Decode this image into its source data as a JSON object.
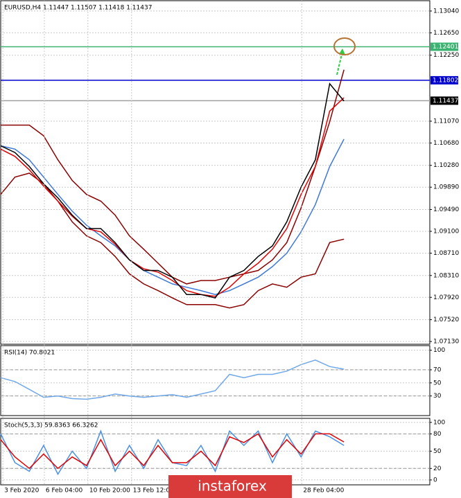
{
  "chart_data": [
    {
      "type": "line",
      "title": "EURUSD,H4  1.11447 1.11507 1.11418 1.11437",
      "x": [
        0,
        1,
        2,
        3,
        4,
        5,
        6,
        7,
        8,
        9,
        10,
        11,
        12,
        13,
        14,
        15,
        16,
        17,
        18,
        19,
        20,
        21,
        22,
        23,
        24
      ],
      "xlim": [
        0,
        30
      ],
      "ylim": [
        1.07081,
        1.13225
      ],
      "yticks": [
        {
          "value": 1.1304,
          "label": "1.13040"
        },
        {
          "value": 1.1265,
          "label": "1.12650"
        },
        {
          "value": 1.1225,
          "label": "1.12250"
        },
        {
          "value": 1.1107,
          "label": "1.11070"
        },
        {
          "value": 1.1068,
          "label": "1.10680"
        },
        {
          "value": 1.1028,
          "label": "1.10280"
        },
        {
          "value": 1.0989,
          "label": "1.09890"
        },
        {
          "value": 1.0949,
          "label": "1.09490"
        },
        {
          "value": 1.091,
          "label": "1.09100"
        },
        {
          "value": 1.0871,
          "label": "1.08710"
        },
        {
          "value": 1.0831,
          "label": "1.08310"
        },
        {
          "value": 1.0792,
          "label": "1.07920"
        },
        {
          "value": 1.0752,
          "label": "1.07520"
        },
        {
          "value": 1.0713,
          "label": "1.07130"
        }
      ],
      "grid": true,
      "series": [
        {
          "color": "#8b0000",
          "values": [
            1.11,
            1.11,
            1.11,
            1.1081,
            1.1038,
            1.1001,
            1.0976,
            1.0964,
            1.0939,
            1.0902,
            1.0878,
            1.0853,
            1.0828,
            1.0816,
            1.0822,
            1.0822,
            1.0828,
            1.0834,
            1.084,
            1.0859,
            1.089,
            1.0952,
            1.1026,
            1.1106,
            1.1199
          ]
        },
        {
          "color": "#8b0000",
          "values": [
            1.0976,
            1.1007,
            1.1014,
            1.0995,
            1.0964,
            1.0927,
            1.0902,
            1.089,
            1.0865,
            1.0834,
            1.0816,
            1.0804,
            1.0791,
            1.0779,
            1.0779,
            1.0779,
            1.0773,
            1.0779,
            1.0804,
            1.0816,
            1.081,
            1.0828,
            1.0834,
            1.089,
            1.0896
          ]
        },
        {
          "color": "#3c78d8",
          "values": [
            1.1063,
            1.1057,
            1.1038,
            1.1007,
            1.0976,
            1.0946,
            1.0921,
            1.0902,
            1.0884,
            1.0859,
            1.084,
            1.0828,
            1.0816,
            1.081,
            1.0804,
            1.0797,
            1.0804,
            1.0816,
            1.0828,
            1.0847,
            1.0871,
            1.0909,
            1.0958,
            1.1026,
            1.1075
          ]
        },
        {
          "color": "#e00000",
          "values": [
            1.1057,
            1.1044,
            1.102,
            1.0991,
            1.0964,
            1.0937,
            1.0915,
            1.0909,
            1.0887,
            1.0859,
            1.0843,
            1.0837,
            1.0822,
            1.0804,
            1.0797,
            1.0794,
            1.081,
            1.0834,
            1.0853,
            1.0878,
            1.0915,
            1.0976,
            1.1026,
            1.1125,
            1.1149
          ]
        },
        {
          "color": "#000000",
          "values": [
            1.1063,
            1.1051,
            1.1026,
            1.0995,
            1.097,
            1.0939,
            1.0915,
            1.0915,
            1.089,
            1.0859,
            1.084,
            1.084,
            1.0828,
            1.0797,
            1.0797,
            1.0791,
            1.0828,
            1.084,
            1.0865,
            1.0884,
            1.0927,
            1.0989,
            1.1038,
            1.1174,
            1.1143
          ]
        }
      ],
      "hlines": [
        {
          "value": 1.12401,
          "color": "#3cb371"
        },
        {
          "value": 1.11802,
          "color": "#0000cd"
        },
        {
          "value": 1.11437,
          "color": "#a0a0a0",
          "tag": "#000000"
        }
      ]
    },
    {
      "type": "line",
      "title": "RSI(14) 70.8021",
      "x": [
        0,
        1,
        2,
        3,
        4,
        5,
        6,
        7,
        8,
        9,
        10,
        11,
        12,
        13,
        14,
        15,
        16,
        17,
        18,
        19,
        20,
        21,
        22,
        23,
        24
      ],
      "xlim": [
        0,
        30
      ],
      "ylim": [
        0,
        107
      ],
      "yticks": [
        100,
        70,
        50,
        30
      ],
      "levels": [
        70,
        30
      ],
      "grid": true,
      "series": [
        {
          "color": "#6fa8e8",
          "values": [
            58,
            52,
            40,
            28,
            30,
            26,
            25,
            28,
            33,
            30,
            28,
            30,
            32,
            28,
            33,
            38,
            63,
            58,
            63,
            63,
            68,
            78,
            85,
            75,
            71
          ]
        }
      ]
    },
    {
      "type": "line",
      "title": "Stoch(5,3,3) 59.8363 66.3262",
      "x": [
        0,
        1,
        2,
        3,
        4,
        5,
        6,
        7,
        8,
        9,
        10,
        11,
        12,
        13,
        14,
        15,
        16,
        17,
        18,
        19,
        20,
        21,
        22,
        23,
        24
      ],
      "xlim": [
        0,
        30
      ],
      "ylim": [
        -8.5,
        107
      ],
      "yticks": [
        100,
        80,
        50,
        20,
        0
      ],
      "levels": [
        80,
        20
      ],
      "grid": true,
      "xticks": [
        {
          "value": 0.15,
          "label": "3 Feb 2020"
        },
        {
          "value": 3.05,
          "label": "6 Feb 04:00"
        },
        {
          "value": 6.1,
          "label": "10 Feb 20:00"
        },
        {
          "value": 9.15,
          "label": "13 Feb 12:00"
        },
        {
          "value": 21.05,
          "label": "28 Feb 04:00"
        }
      ],
      "series": [
        {
          "color": "#4a90e2",
          "values": [
            80,
            30,
            15,
            60,
            10,
            50,
            20,
            85,
            15,
            60,
            20,
            70,
            30,
            25,
            60,
            15,
            85,
            60,
            85,
            30,
            80,
            40,
            85,
            75,
            60
          ]
        },
        {
          "color": "#e00000",
          "values": [
            70,
            40,
            20,
            45,
            20,
            40,
            25,
            70,
            25,
            50,
            25,
            60,
            30,
            30,
            50,
            25,
            75,
            65,
            80,
            40,
            70,
            45,
            80,
            80,
            66
          ]
        }
      ]
    }
  ],
  "watermark": "instaforex"
}
